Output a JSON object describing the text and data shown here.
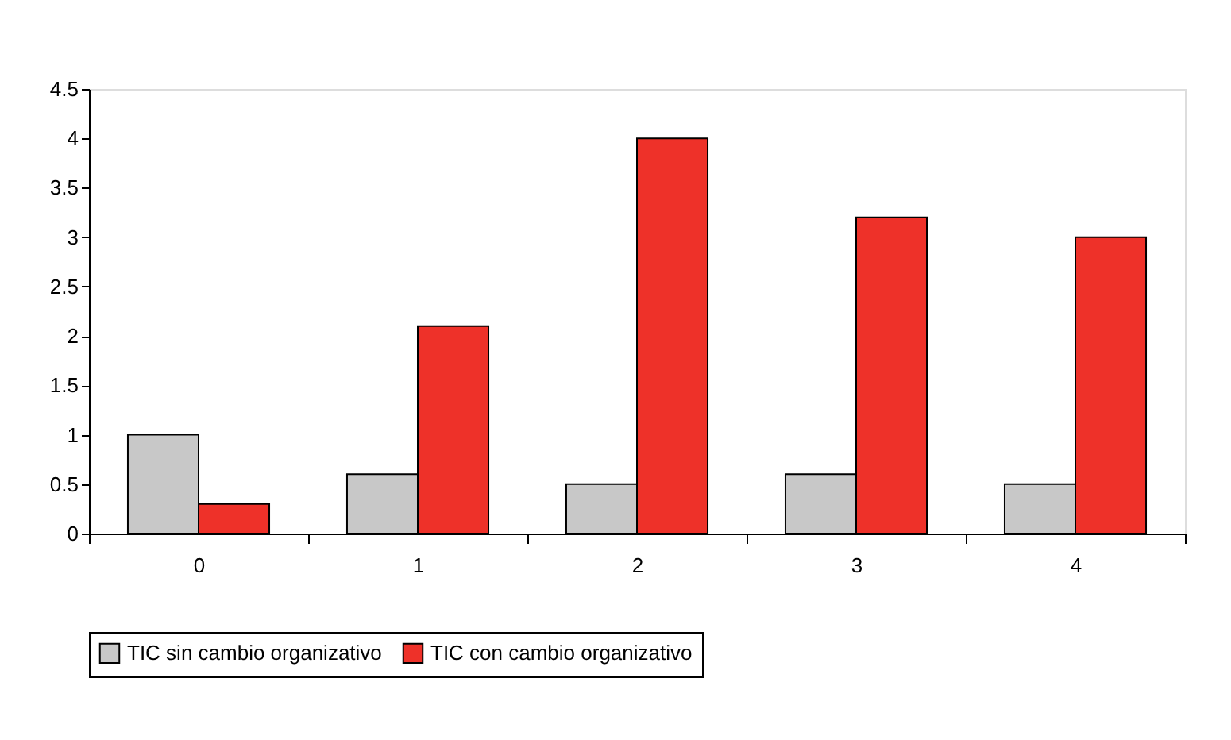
{
  "chart_data": {
    "type": "bar",
    "categories": [
      "0",
      "1",
      "2",
      "3",
      "4"
    ],
    "series": [
      {
        "name": "TIC sin cambio organizativo",
        "color": "#c8c8c8",
        "values": [
          1,
          0.6,
          0.5,
          0.6,
          0.5
        ]
      },
      {
        "name": "TIC con cambio organizativo",
        "color": "#ee3129",
        "values": [
          0.3,
          2.1,
          4,
          3.2,
          3
        ]
      }
    ],
    "ylim": [
      0,
      4.5
    ],
    "yticks": [
      0,
      0.5,
      1,
      1.5,
      2,
      2.5,
      3,
      3.5,
      4,
      4.5
    ],
    "grid": false,
    "legend": "bottom"
  }
}
